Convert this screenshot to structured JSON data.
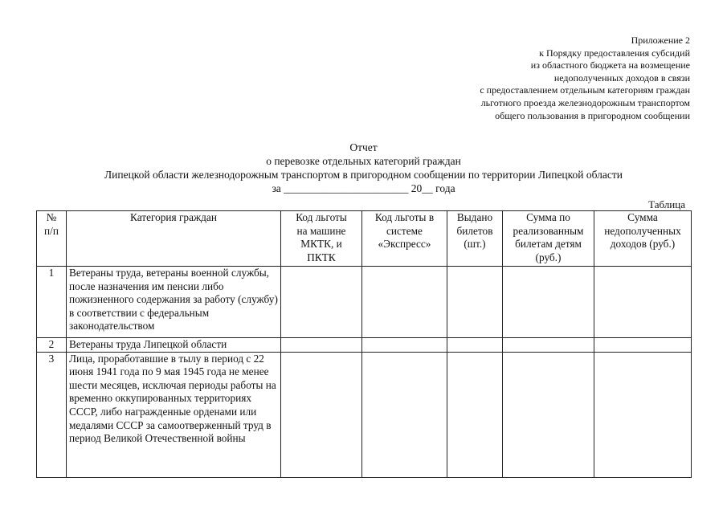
{
  "appendix": {
    "lines": [
      "Приложение 2",
      "к Порядку  предоставления субсидий",
      "из областного бюджета на возмещение",
      "недополученных доходов  в связи",
      "с предоставлением отдельным категориям  граждан",
      "льготного проезда железнодорожным транспортом",
      "общего  пользования в пригородном сообщении"
    ]
  },
  "title": {
    "lines": [
      "Отчет",
      "о перевозке отдельных категорий граждан",
      "Липецкой области железнодорожным транспортом в пригородном сообщении по территории Липецкой области",
      "за _______________________ 20__ года"
    ]
  },
  "table_label": "Таблица",
  "table": {
    "headers": [
      "№\nп/п",
      "Категория граждан",
      "Код льготы\nна машине\nМКТК, и\nПКТК",
      "Код льготы в\nсистеме\n«Экспресс»",
      "Выдано\nбилетов\n(шт.)",
      "Сумма по\nреализованным\nбилетам детям\n(руб.)",
      "Сумма\nнедополученных\nдоходов (руб.)"
    ],
    "rows": [
      {
        "num": "1",
        "category": "Ветераны труда, ветераны военной службы, после назначения им пенсии либо пожизненного содержания за работу (службу) в соответствии с федеральным законодательством",
        "values": [
          "",
          "",
          "",
          "",
          ""
        ]
      },
      {
        "num": "2",
        "category": "Ветераны труда Липецкой области",
        "values": [
          "",
          "",
          "",
          "",
          ""
        ]
      },
      {
        "num": "3",
        "category": "Лица, проработавшие в тылу в период с 22 июня 1941 года по 9 мая 1945 года не менее шести месяцев, исключая периоды работы на временно оккупированных территориях СССР, либо награжденные орденами или медалями СССР за самоотверженный труд в период Великой Отечественной войны",
        "values": [
          "",
          "",
          "",
          "",
          ""
        ]
      }
    ]
  }
}
